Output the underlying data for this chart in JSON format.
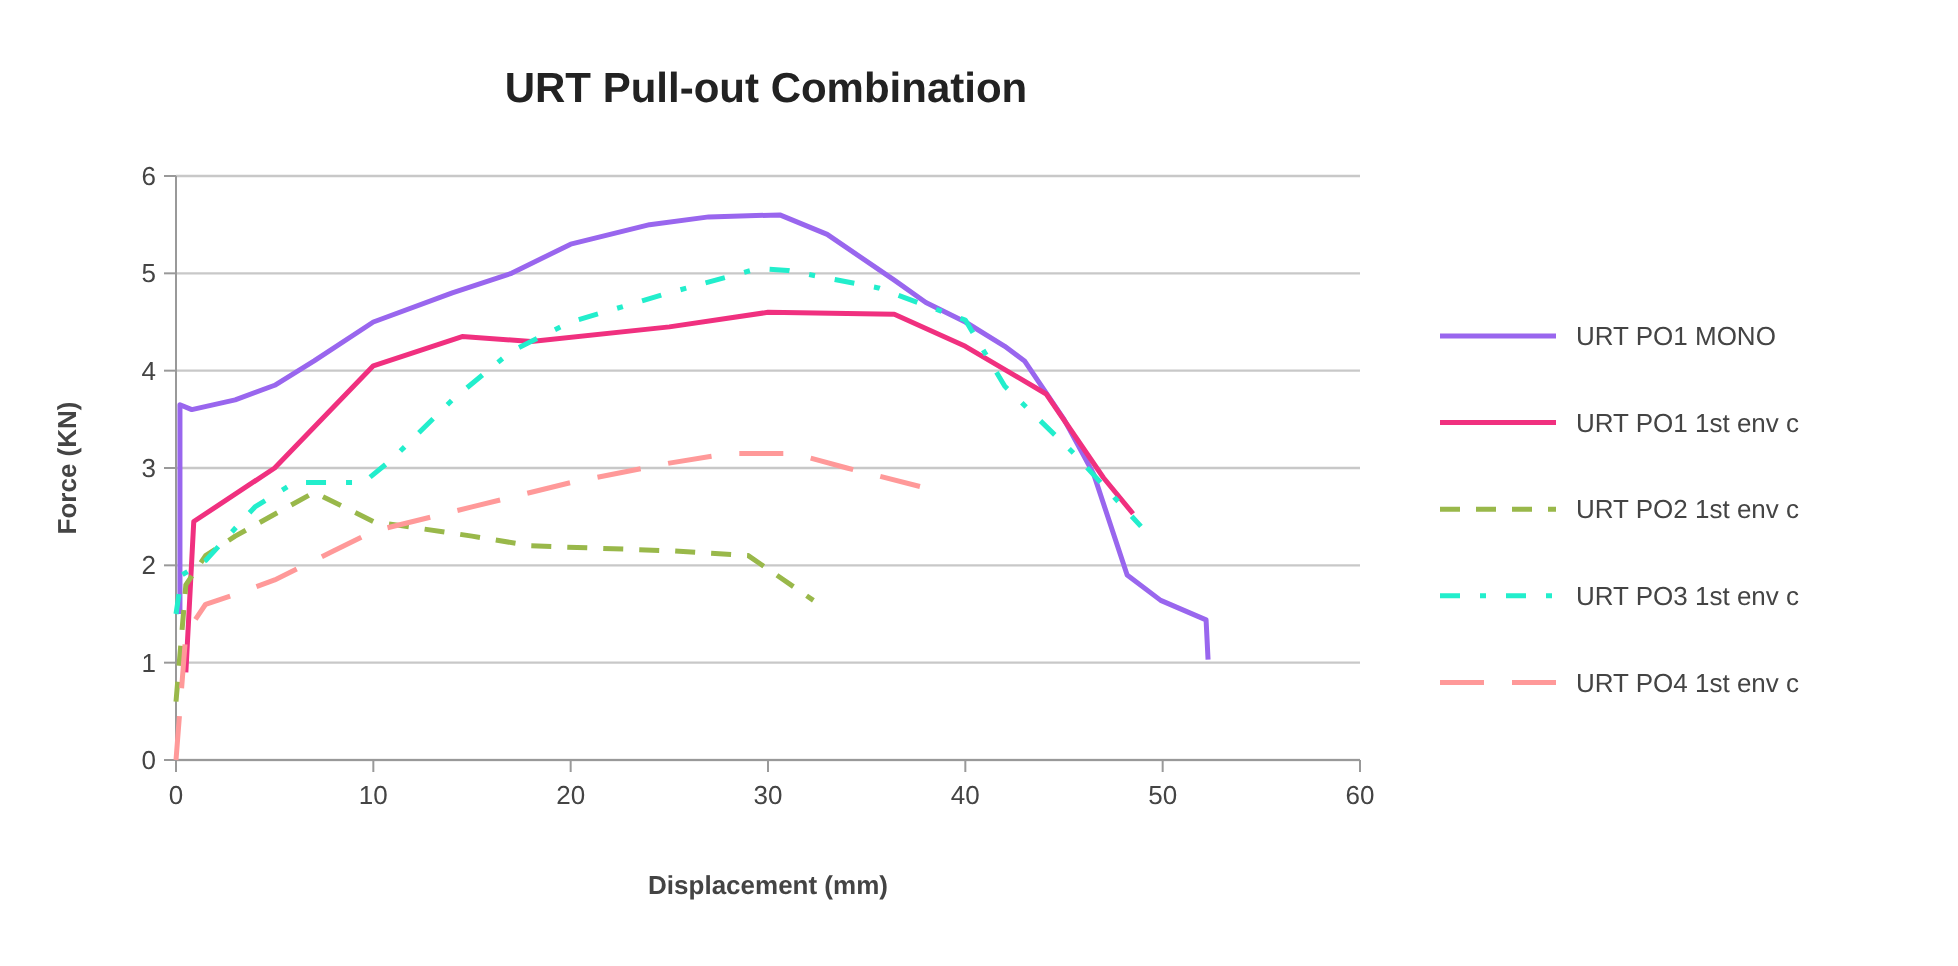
{
  "chart_data": {
    "type": "line",
    "title": "URT Pull-out Combination",
    "xlabel": "Displacement (mm)",
    "ylabel": "Force (KN)",
    "xlim": [
      0,
      60
    ],
    "xticks": [
      0,
      10,
      20,
      30,
      40,
      50,
      60
    ],
    "ylim": [
      0,
      6
    ],
    "yticks": [
      0,
      1,
      2,
      3,
      4,
      5,
      6
    ],
    "grid": "y",
    "legend": "right",
    "series": [
      {
        "name": "URT PO1 MONO",
        "color": "#9966ee",
        "line_style": "solid",
        "x": [
          0.2,
          0.2,
          0.8,
          3,
          5,
          7,
          10,
          14,
          17,
          20,
          24,
          27,
          30.6,
          33,
          36.4,
          38,
          40,
          42,
          43,
          45,
          46.5,
          48.2,
          49.9,
          52.2,
          52.3
        ],
        "values": [
          1.5,
          3.65,
          3.6,
          3.7,
          3.85,
          4.1,
          4.5,
          4.8,
          5.0,
          5.3,
          5.5,
          5.58,
          5.6,
          5.4,
          4.93,
          4.7,
          4.5,
          4.25,
          4.1,
          3.5,
          2.94,
          1.9,
          1.64,
          1.44,
          1.03
        ]
      },
      {
        "name": "URT PO1 1st env c",
        "color": "#f0307f",
        "line_style": "solid",
        "x": [
          0.5,
          0.9,
          5,
          10,
          14.5,
          18,
          25,
          30,
          36.4,
          40,
          44.1,
          47,
          48.5
        ],
        "values": [
          0.9,
          2.45,
          3.0,
          4.05,
          4.35,
          4.3,
          4.45,
          4.6,
          4.58,
          4.25,
          3.76,
          2.9,
          2.53
        ]
      },
      {
        "name": "URT PO2 1st env c",
        "color": "#99b84a",
        "line_style": "dashed",
        "x": [
          0,
          0.5,
          1.5,
          3,
          7,
          10,
          15,
          18,
          25,
          29,
          32.3
        ],
        "values": [
          0.6,
          1.8,
          2.1,
          2.3,
          2.75,
          2.45,
          2.3,
          2.2,
          2.15,
          2.1,
          1.64
        ]
      },
      {
        "name": "URT PO3 1st env c",
        "color": "#22eecc",
        "line_style": "dashed",
        "x": [
          0,
          0.3,
          1.5,
          4,
          6,
          9.5,
          11,
          14,
          17,
          20,
          25,
          29.5,
          31,
          35.6,
          40,
          42,
          45.5,
          48.9
        ],
        "values": [
          1.5,
          1.9,
          2.05,
          2.6,
          2.85,
          2.85,
          3.1,
          3.7,
          4.2,
          4.5,
          4.8,
          5.05,
          5.03,
          4.85,
          4.52,
          3.84,
          3.15,
          2.4
        ]
      },
      {
        "name": "URT PO4 1st env c",
        "color": "#ff9999",
        "line_style": "dashed",
        "x": [
          0,
          0.5,
          1.5,
          3,
          5,
          8,
          10,
          15,
          20,
          25,
          28,
          31.3,
          34,
          37.7
        ],
        "values": [
          0,
          1.3,
          1.6,
          1.7,
          1.85,
          2.15,
          2.35,
          2.6,
          2.85,
          3.05,
          3.15,
          3.15,
          3.0,
          2.81
        ]
      }
    ]
  }
}
